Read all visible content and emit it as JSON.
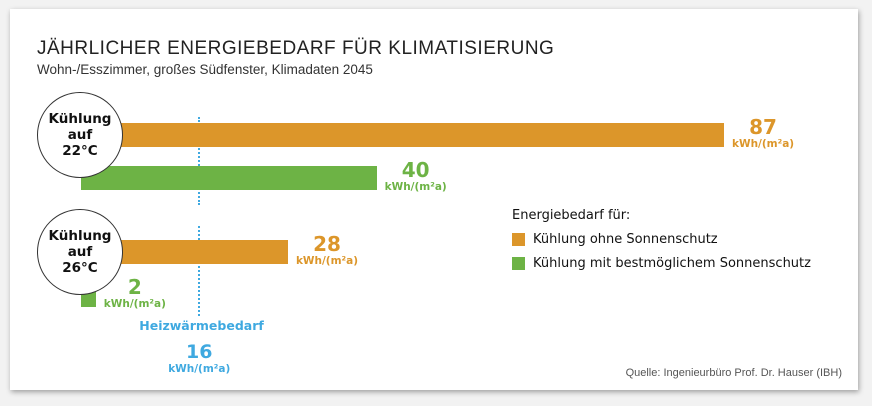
{
  "chart_data": {
    "type": "bar",
    "title": "JÄHRLICHER ENERGIEBEDARF FÜR KLIMATISIERUNG",
    "subtitle": "Wohn-/Esszimmer, großes Südfenster, Klimadaten 2045",
    "unit": "kWh/(m²a)",
    "categories": [
      {
        "lines": [
          "Kühlung",
          "auf",
          "22°C"
        ]
      },
      {
        "lines": [
          "Kühlung",
          "auf",
          "26°C"
        ]
      }
    ],
    "series": [
      {
        "name": "Kühlung ohne Sonnenschutz",
        "color": "#dc962a",
        "values": [
          87,
          28
        ]
      },
      {
        "name": "Kühlung mit bestmöglichem Sonnenschutz",
        "color": "#6db345",
        "values": [
          40,
          2
        ]
      }
    ],
    "reference": {
      "label": "Heizwärmebedarf",
      "value": 16,
      "color": "#3fa9e0"
    },
    "legend_title": "Energiebedarf für:",
    "legend_position": "right",
    "xlim": [
      0,
      87
    ],
    "source": "Quelle: Ingenieurbüro Prof. Dr. Hauser (IBH)"
  }
}
